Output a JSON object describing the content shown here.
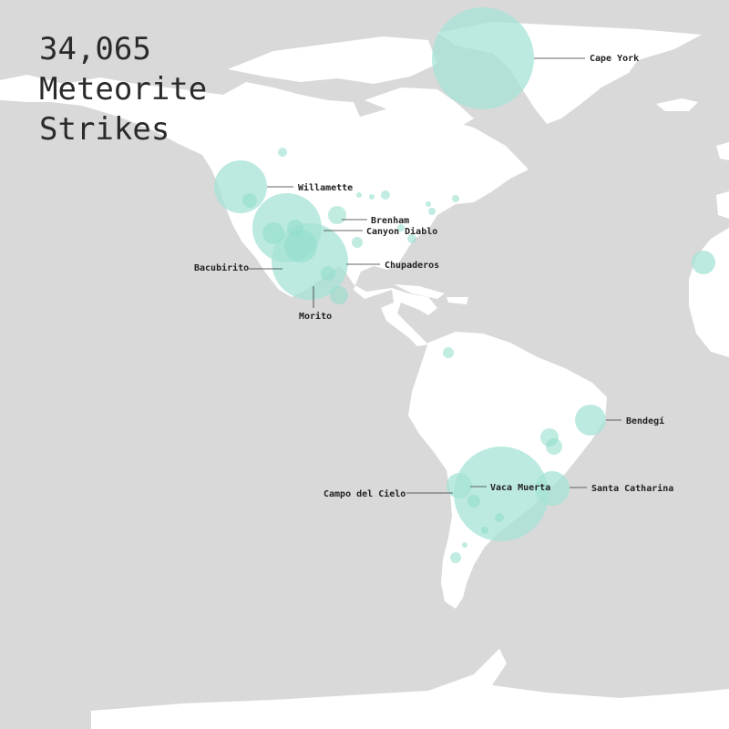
{
  "title": {
    "count": "34,065",
    "line2": "Meteorite",
    "line3": "Strikes"
  },
  "colors": {
    "ocean": "#d9d9da",
    "land": "#ffffff",
    "strike": "#8edcca",
    "text": "#222222"
  },
  "labels": {
    "cape_york": "Cape York",
    "willamette": "Willamette",
    "brenham": "Brenham",
    "canyon_diablo": "Canyon Diablo",
    "chupaderos": "Chupaderos",
    "bacubirito": "Bacubirito",
    "morito": "Morito",
    "bendegi": "Bendegí",
    "campo_del_cielo": "Campo del Cielo",
    "vaca_muerta": "Vaca Muerta",
    "santa_catharina": "Santa Catharina"
  }
}
